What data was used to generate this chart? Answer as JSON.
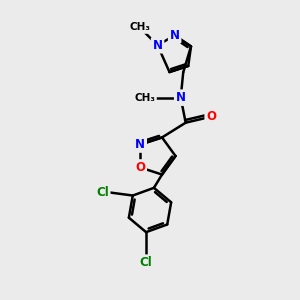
{
  "background_color": "#ebebeb",
  "bond_color": "#000000",
  "bond_width": 1.8,
  "atom_colors": {
    "N": "#0000ff",
    "O": "#ff0000",
    "Cl": "#008000",
    "C": "#000000"
  }
}
